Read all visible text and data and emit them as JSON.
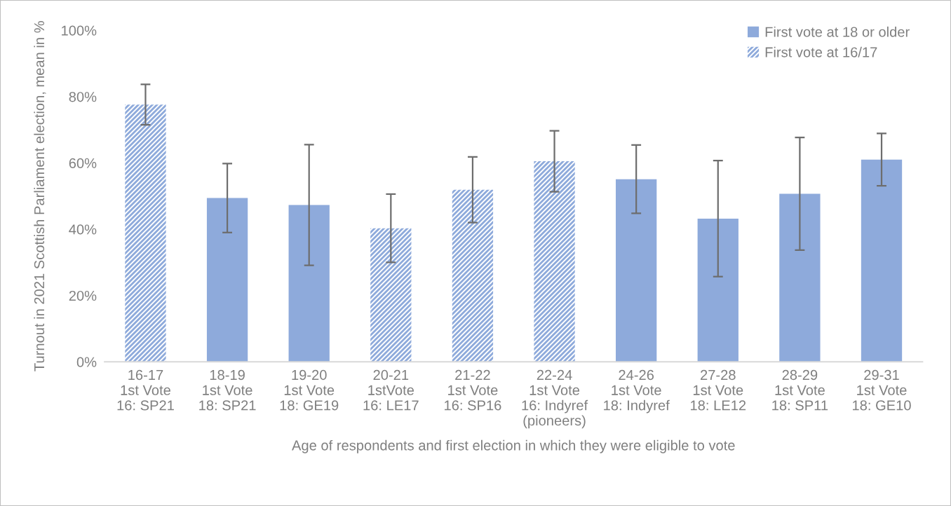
{
  "chart_data": {
    "type": "bar",
    "xlabel": "Age of respondents and first election in which they were eligible to vote",
    "ylabel": "Turnout in 2021 Scottish Parliament election, mean in %",
    "categories": [
      "16-17\n1st Vote\n16: SP21",
      "18-19\n1st Vote\n18: SP21",
      "19-20\n1st Vote\n18: GE19",
      "20-21\n1stVote\n16: LE17",
      "21-22\n1st Vote\n16: SP16",
      "22-24\n1st Vote\n16: Indyref\n(pioneers)",
      "24-26\n1st Vote\n18: Indyref",
      "27-28\n1st Vote\n18: LE12",
      "28-29\n1st Vote\n18: SP11",
      "29-31\n1st Vote\n18: GE10"
    ],
    "series": [
      {
        "name": "First vote at 18 or older",
        "color": "#8eaadb",
        "values": [
          null,
          49.4,
          47.3,
          null,
          null,
          null,
          55.1,
          43.2,
          50.7,
          61.0
        ],
        "errors": [
          null,
          10.4,
          18.2,
          null,
          null,
          null,
          10.3,
          17.5,
          17.0,
          7.9
        ]
      },
      {
        "name": "First vote at 16/17",
        "color": "#8eaadb",
        "values": [
          77.6,
          null,
          null,
          40.3,
          51.9,
          60.5,
          null,
          null,
          null,
          null
        ],
        "errors": [
          6.1,
          null,
          null,
          10.3,
          9.9,
          9.2,
          null,
          null,
          null,
          null
        ]
      }
    ],
    "ylim": [
      0,
      100
    ],
    "yticks": [
      {
        "value": 0,
        "label": "0%"
      },
      {
        "value": 20,
        "label": "20%"
      },
      {
        "value": 40,
        "label": "40%"
      },
      {
        "value": 60,
        "label": "60%"
      },
      {
        "value": 80,
        "label": "80%"
      },
      {
        "value": 100,
        "label": "100%"
      }
    ],
    "grid": false,
    "legend": "top right"
  }
}
